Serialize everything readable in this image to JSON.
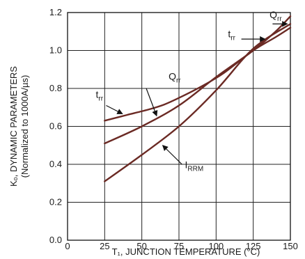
{
  "chart_data": {
    "type": "line",
    "title": "",
    "xlabel": "T₁, JUNCTION TEMPERATURE (°C)",
    "ylabel": "Kₒ, DYNAMIC PARAMETERS",
    "ylabel2": "(Normalized to 1000A/µs)",
    "xlim": [
      0,
      150
    ],
    "ylim": [
      0,
      1.2
    ],
    "grid": true,
    "xticks": [
      0,
      25,
      50,
      75,
      100,
      125,
      150
    ],
    "yticks": [
      0.0,
      0.2,
      0.4,
      0.6,
      0.8,
      1.0,
      1.2
    ],
    "xtick_labels": [
      "0",
      "25",
      "50",
      "75",
      "100",
      "125",
      "150"
    ],
    "ytick_labels": [
      "0.0",
      "0.2",
      "0.4",
      "0.6",
      "0.8",
      "1.0",
      "1.2"
    ],
    "series": [
      {
        "name": "t_rr",
        "label_main": "t",
        "label_sub": "rr",
        "x": [
          25,
          40,
          55,
          65,
          75,
          90,
          105,
          125,
          140,
          150
        ],
        "y": [
          0.63,
          0.66,
          0.69,
          0.715,
          0.75,
          0.81,
          0.88,
          1.0,
          1.07,
          1.12
        ]
      },
      {
        "name": "Q_rr",
        "label_main": "Q",
        "label_sub": "rr",
        "x": [
          25,
          50,
          75,
          100,
          125,
          140,
          150
        ],
        "y": [
          0.51,
          0.6,
          0.71,
          0.86,
          1.0,
          1.1,
          1.18
        ]
      },
      {
        "name": "I_RRM",
        "label_main": "I",
        "label_sub": "RRM",
        "x": [
          25,
          50,
          75,
          100,
          125,
          150
        ],
        "y": [
          0.31,
          0.45,
          0.6,
          0.79,
          1.01,
          1.14
        ]
      }
    ],
    "annotations": [
      {
        "series": "Q_rr",
        "main": "Q",
        "sub": "rr",
        "text_x": 68,
        "text_y": 0.845,
        "arrow_from": [
          53,
          0.8
        ],
        "arrow_to": [
          60,
          0.655
        ]
      },
      {
        "series": "t_rr",
        "main": "t",
        "sub": "rr",
        "text_x": 19,
        "text_y": 0.75,
        "arrow_from": [
          26,
          0.71
        ],
        "arrow_to": [
          37,
          0.666
        ]
      },
      {
        "series": "I_RRM",
        "main": "I",
        "sub": "RRM",
        "text_x": 79,
        "text_y": 0.38,
        "arrow_from": [
          77,
          0.4
        ],
        "arrow_to": [
          64,
          0.5
        ]
      },
      {
        "series": "Q_rr",
        "main": "Q",
        "sub": "rr",
        "text_x": 136,
        "text_y": 1.17,
        "arrow_from": [
          138,
          1.14
        ],
        "arrow_to": [
          148,
          1.14
        ]
      },
      {
        "series": "t_rr",
        "main": "t",
        "sub": "rr",
        "text_x": 108,
        "text_y": 1.07,
        "arrow_from": [
          117,
          1.06
        ],
        "arrow_to": [
          133,
          1.06
        ]
      }
    ]
  }
}
